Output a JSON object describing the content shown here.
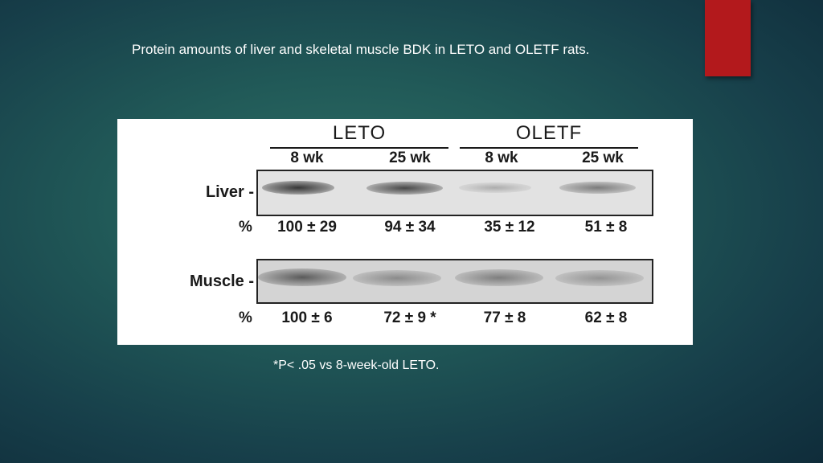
{
  "slide": {
    "title": "Protein amounts of liver and skeletal muscle BDK in LETO and OLETF rats.",
    "footnote": "*P< .05 vs 8-week-old LETO.",
    "colors": {
      "accent": "#b3191c",
      "background": "#1f5456"
    }
  },
  "figure": {
    "groups": [
      {
        "label": "LETO"
      },
      {
        "label": "OLETF"
      }
    ],
    "columns": [
      "8 wk",
      "25 wk",
      "8 wk",
      "25 wk"
    ],
    "rows": [
      {
        "label": "Liver -",
        "percent_label": "%",
        "values": [
          "100 ± 29",
          "94 ± 34",
          "35 ± 12",
          "51 ± 8"
        ]
      },
      {
        "label": "Muscle -",
        "percent_label": "%",
        "values": [
          "100 ± 6",
          "72 ± 9 *",
          "77 ± 8",
          "62 ± 8"
        ]
      }
    ]
  }
}
